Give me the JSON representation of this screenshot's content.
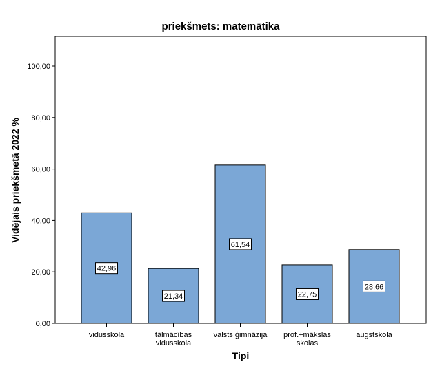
{
  "chart_data": {
    "type": "bar",
    "title": "priekšmets: matemātika",
    "xlabel": "Tipi",
    "ylabel": "Vidējais priekšmetā 2022 %",
    "categories": [
      [
        "vidusskola"
      ],
      [
        "tālmācības",
        "vidusskola"
      ],
      [
        "valsts ģimnāzija"
      ],
      [
        "prof.+mākslas",
        "skolas"
      ],
      [
        "augstskola"
      ]
    ],
    "values": [
      42.96,
      21.34,
      61.54,
      22.75,
      28.66
    ],
    "data_labels": [
      "42,96",
      "21,34",
      "61,54",
      "22,75",
      "28,66"
    ],
    "yticks": [
      0,
      20,
      40,
      60,
      80,
      100
    ],
    "ytick_labels": [
      "0,00",
      "20,00",
      "40,00",
      "60,00",
      "80,00",
      "100,00"
    ],
    "ylim": [
      0,
      111.5
    ],
    "grid": false,
    "bar_color": "#7ba7d6"
  }
}
